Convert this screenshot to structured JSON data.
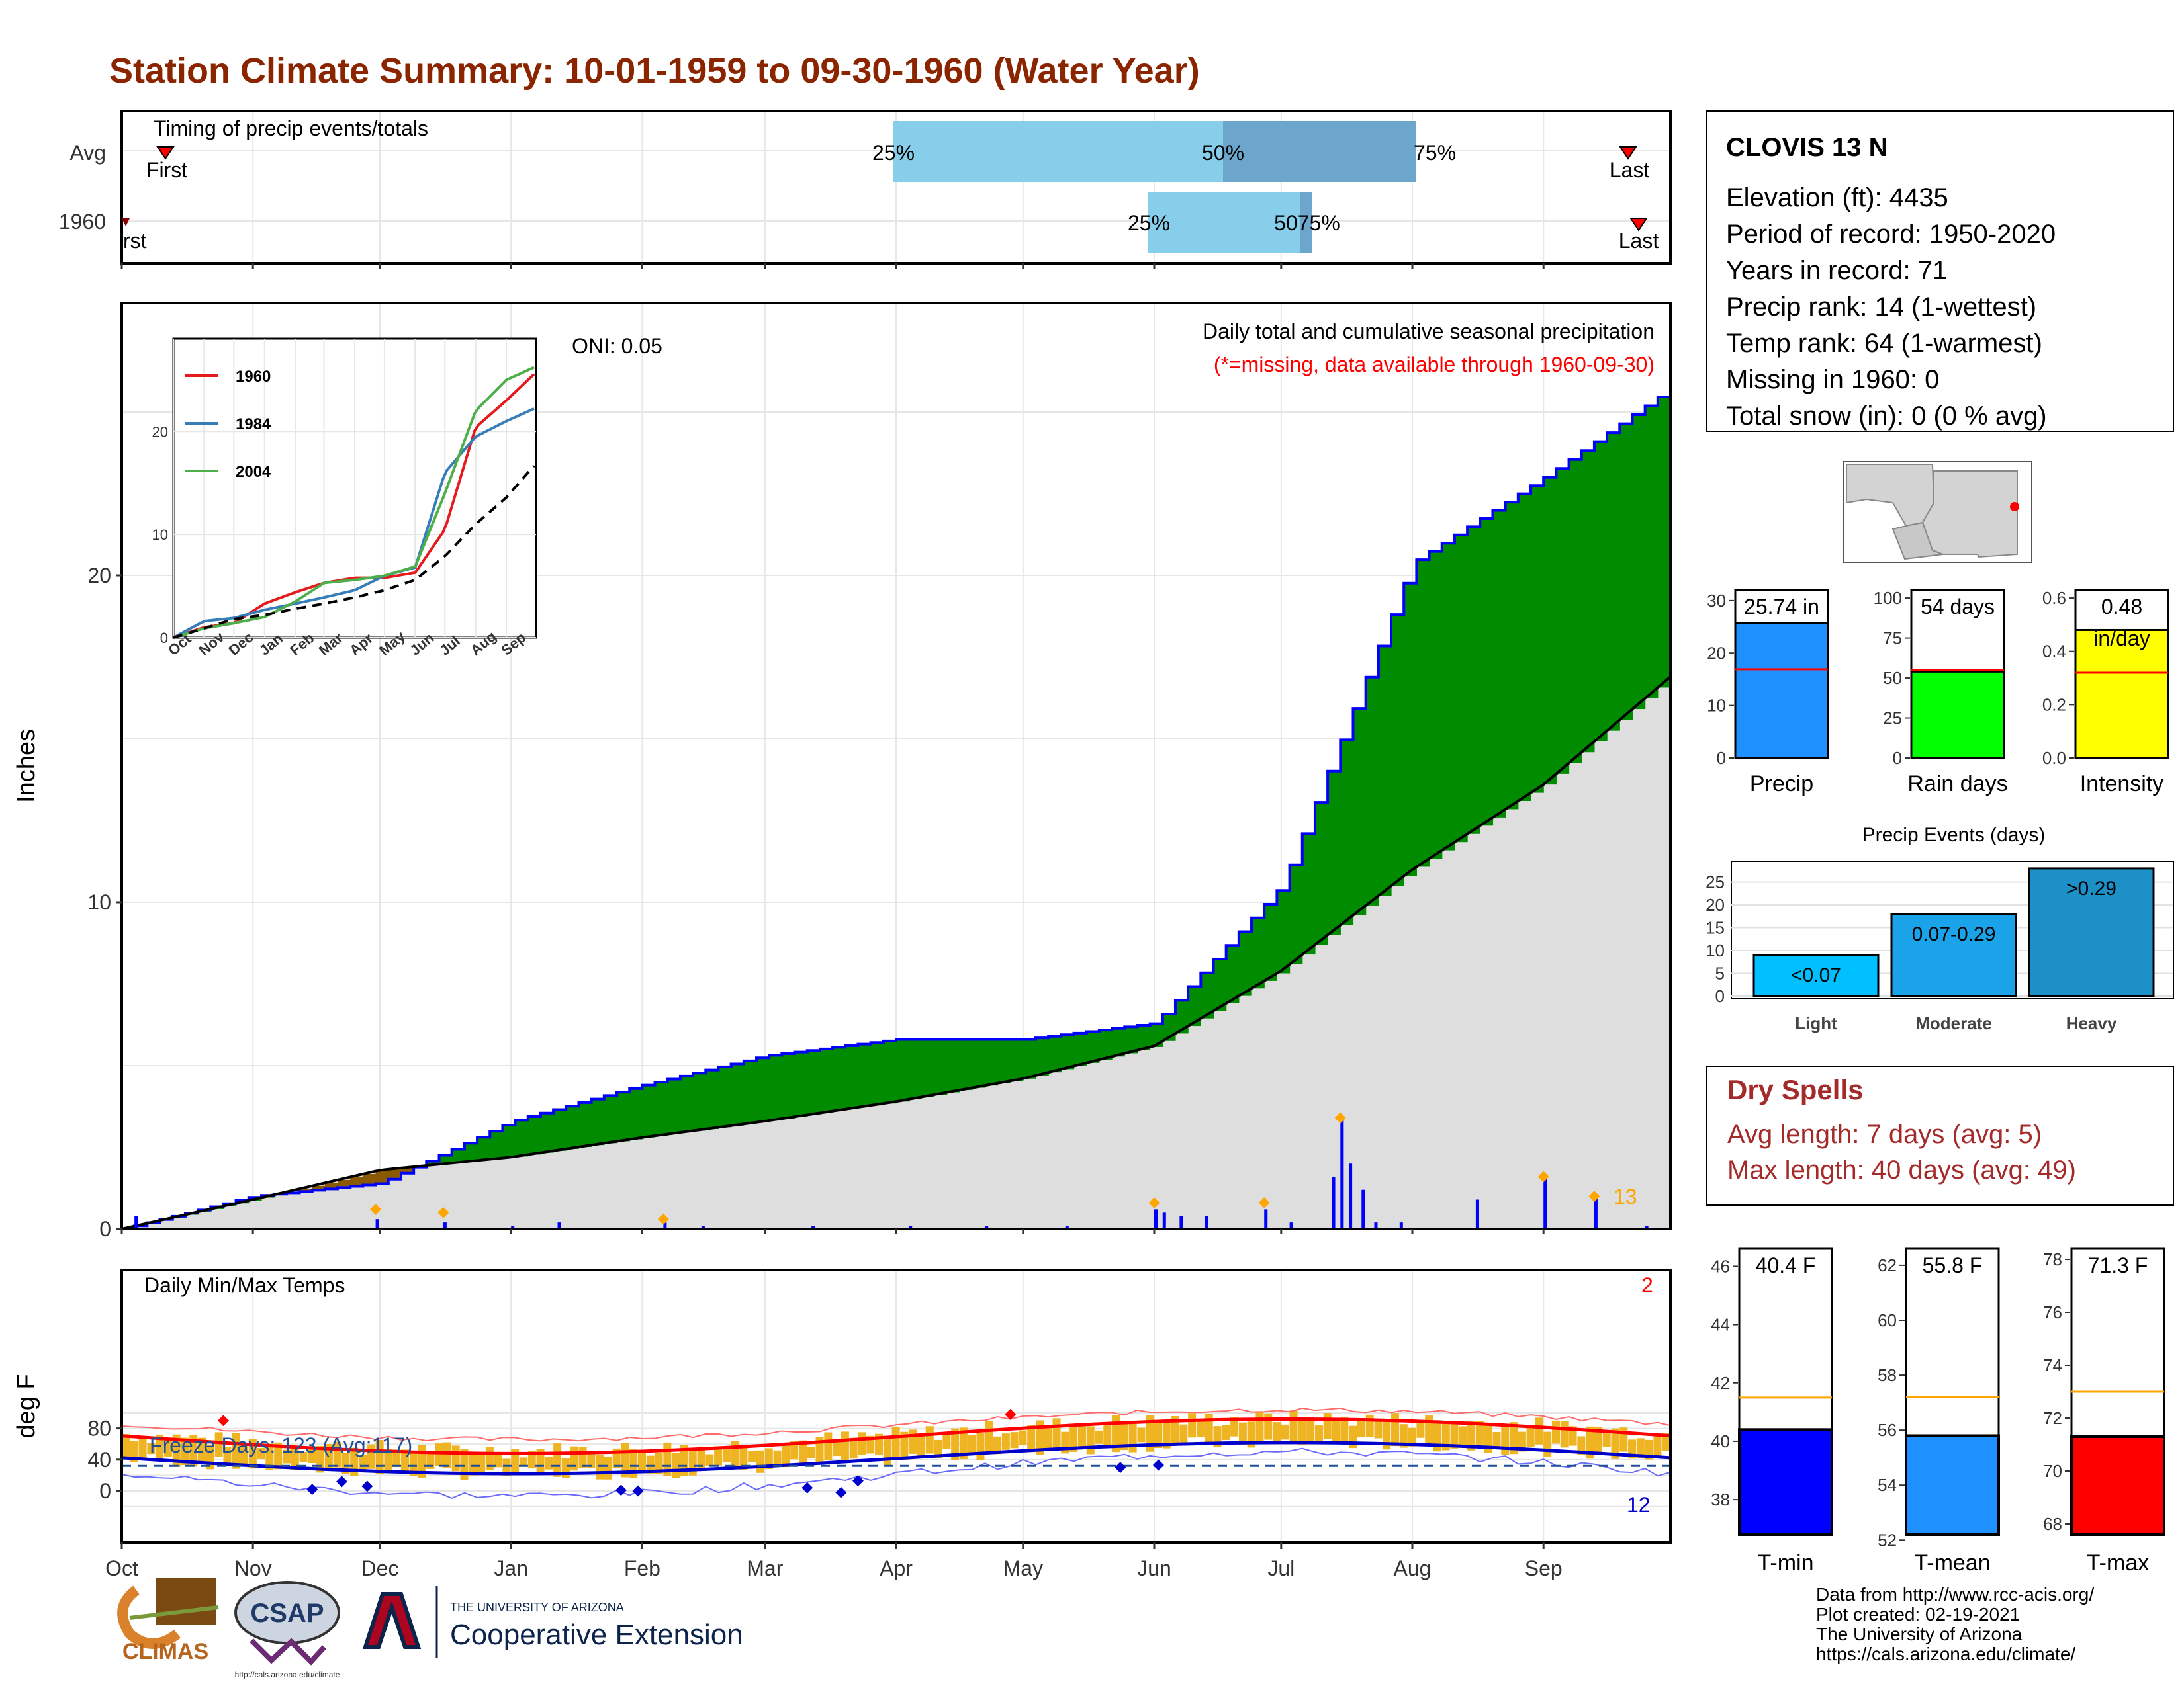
{
  "title": "Station Climate Summary: 10-01-1959 to 09-30-1960 (Water Year)",
  "timing": {
    "label": "Timing of precip events/totals",
    "row_avg": "Avg",
    "row_year": "1960",
    "first": "First",
    "first_year": "rst",
    "last": "Last",
    "p25": "25%",
    "p50": "50%",
    "p75": "75%",
    "p5075": "5075%",
    "colors": {
      "light": "#87CEEB",
      "dark": "#6CA6CD",
      "marker": "#FF0000"
    }
  },
  "precip_panel": {
    "ylabel": "Inches",
    "oni": "ONI: 0.05",
    "subtitle": "Daily total and cumulative seasonal precipitation",
    "missing_note": "(*=missing, data available through 1960-09-30)",
    "count_label": "13",
    "yticks": [
      "0",
      "10",
      "20"
    ],
    "colors": {
      "above": "#008B00",
      "below": "#8B5A00",
      "normal": "#DEDEDE",
      "line": "#0000FF",
      "bars": "#0000FF",
      "extreme": "#FFA500"
    }
  },
  "inset": {
    "legend": [
      "1960",
      "1984",
      "2004"
    ],
    "colors": [
      "#E41A1C",
      "#377EB8",
      "#4DAF4A"
    ],
    "yticks": [
      "0",
      "10",
      "20"
    ],
    "months": [
      "Oct",
      "Nov",
      "Dec",
      "Jan",
      "Feb",
      "Mar",
      "Apr",
      "May",
      "Jun",
      "Jul",
      "Aug",
      "Sep"
    ]
  },
  "temp_panel": {
    "ylabel": "deg F",
    "label": "Daily Min/Max Temps",
    "freeze": "Freeze Days: 123 (Avg:117)",
    "hot_count": "2",
    "cold_count": "12",
    "yticks": [
      "0",
      "40",
      "80"
    ],
    "colors": {
      "bars": "#EEB422",
      "max": "#FF0000",
      "min": "#0000CD",
      "freeze": "#1F4E99"
    }
  },
  "months": [
    "Oct",
    "Nov",
    "Dec",
    "Jan",
    "Feb",
    "Mar",
    "Apr",
    "May",
    "Jun",
    "Jul",
    "Aug",
    "Sep"
  ],
  "station": {
    "name": "CLOVIS 13 N",
    "lines": [
      "Elevation (ft): 4435",
      "Period of record: 1950-2020",
      "Years in record: 71",
      "Precip rank: 14 (1-wettest)",
      "Temp rank: 64 (1-warmest)",
      "Missing in 1960: 0",
      "Total snow (in): 0 (0 % avg)"
    ]
  },
  "gauges": [
    {
      "label": "Precip",
      "value_text": "25.74 in",
      "value": 25.74,
      "avg": 16.9,
      "max": 32,
      "ticks": [
        "0",
        "10",
        "20",
        "30"
      ],
      "tick_values": [
        0,
        10,
        20,
        30
      ],
      "color": "#1E90FF"
    },
    {
      "label": "Rain days",
      "value_text": "54 days",
      "value": 54,
      "avg": 55,
      "max": 105,
      "ticks": [
        "0",
        "25",
        "50",
        "75",
        "100"
      ],
      "tick_values": [
        0,
        25,
        50,
        75,
        100
      ],
      "color": "#00FF00"
    },
    {
      "label": "Intensity",
      "value_text": "0.48",
      "value_text2": "in/day",
      "value": 0.48,
      "avg": 0.32,
      "max": 0.63,
      "ticks": [
        "0.0",
        "0.2",
        "0.4",
        "0.6"
      ],
      "tick_values": [
        0,
        0.2,
        0.4,
        0.6
      ],
      "color": "#FFFF00"
    }
  ],
  "events": {
    "title": "Precip Events (days)",
    "yticks": [
      "0",
      "5",
      "10",
      "15",
      "20",
      "25"
    ],
    "categories": [
      "Light",
      "Moderate",
      "Heavy"
    ],
    "bar_labels": [
      "<0.07",
      "0.07-0.29",
      ">0.29"
    ],
    "values": [
      9,
      18,
      28
    ],
    "colors": [
      "#00BFFF",
      "#1AA3E8",
      "#1E90C8"
    ]
  },
  "dry": {
    "title": "Dry Spells",
    "line1": "Avg length: 7 days (avg: 5)",
    "line2": "Max length: 40 days (avg: 49)",
    "color": "#A52A2A"
  },
  "temp_gauges": [
    {
      "label": "T-min",
      "value_text": "40.4 F",
      "value": 40.4,
      "avg": 41.5,
      "min": 36.8,
      "max": 46.6,
      "ticks": [
        "38",
        "40",
        "42",
        "44",
        "46"
      ],
      "tick_values": [
        38,
        40,
        42,
        44,
        46
      ],
      "color": "#0000FF"
    },
    {
      "label": "T-mean",
      "value_text": "55.8 F",
      "value": 55.8,
      "avg": 57.2,
      "min": 52.2,
      "max": 62.6,
      "ticks": [
        "52",
        "54",
        "56",
        "58",
        "60",
        "62"
      ],
      "tick_values": [
        52,
        54,
        56,
        58,
        60,
        62
      ],
      "color": "#1E90FF"
    },
    {
      "label": "T-max",
      "value_text": "71.3 F",
      "value": 71.3,
      "avg": 73.0,
      "min": 67.6,
      "max": 78.4,
      "ticks": [
        "68",
        "70",
        "72",
        "74",
        "76",
        "78"
      ],
      "tick_values": [
        68,
        70,
        72,
        74,
        76,
        78
      ],
      "color": "#FF0000"
    }
  ],
  "credits": [
    "Data from http://www.rcc-acis.org/",
    "Plot created: 02-19-2021",
    "The University of Arizona",
    "https://cals.arizona.edu/climate/"
  ],
  "logos": {
    "climas": "CLIMAS",
    "csap": "CSAP",
    "csap_url": "http://cals.arizona.edu/climate",
    "ua_top": "THE UNIVERSITY OF ARIZONA",
    "ua_bottom": "Cooperative Extension"
  },
  "chart_data": {
    "type": "area",
    "title": "Daily total and cumulative seasonal precipitation",
    "ylabel": "Inches",
    "ylim": [
      0,
      25.74
    ],
    "x": [
      "Oct",
      "Nov",
      "Dec",
      "Jan",
      "Feb",
      "Mar",
      "Apr",
      "May",
      "Jun",
      "Jul",
      "Aug",
      "Sep",
      "Sep30"
    ],
    "series": [
      {
        "name": "1960",
        "values": [
          0.0,
          1.0,
          1.4,
          3.3,
          4.4,
          5.3,
          5.8,
          5.8,
          6.3,
          10.5,
          20.4,
          23.0,
          25.74
        ]
      },
      {
        "values": [
          0.0,
          0.9,
          1.8,
          2.2,
          2.8,
          3.3,
          3.9,
          4.6,
          5.6,
          7.9,
          11.0,
          13.6,
          16.9
        ]
      }
    ]
  }
}
